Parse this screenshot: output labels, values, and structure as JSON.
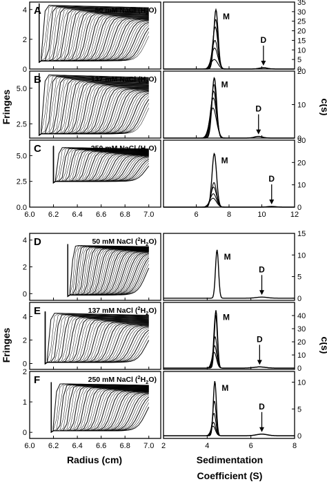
{
  "chart_data": [
    {
      "figure": "top",
      "left": {
        "type": "line",
        "ylabel": "Fringes",
        "xlabel": "",
        "xlim": [
          6.0,
          7.1
        ],
        "xticks": [
          "6.0",
          "6.2",
          "6.4",
          "6.6",
          "6.8",
          "7.0"
        ],
        "panels": [
          {
            "letter": "A",
            "condition": "50 mM NaCl (H",
            "sub": "2",
            "tail": "O)",
            "ylim": [
              0,
              4.5
            ],
            "yticks": [
              "0",
              "2",
              "4"
            ],
            "meniscus": 6.08,
            "y_low": 0.55,
            "y_high": 4.3,
            "y_plateau_end": 3.1,
            "n_scans": 45
          },
          {
            "letter": "B",
            "condition": "137 mM NaCl (H",
            "sub": "2",
            "tail": "O)",
            "ylim": [
              1.5,
              6.2
            ],
            "yticks": [
              "2.5",
              "5.0"
            ],
            "meniscus": 6.08,
            "y_low": 1.8,
            "y_high": 5.95,
            "y_plateau_end": 4.6,
            "n_scans": 45
          },
          {
            "letter": "C",
            "condition": "250 mM NaCl (H",
            "sub": "2",
            "tail": "O)",
            "ylim": [
              0,
              6.5
            ],
            "yticks": [
              "0.0",
              "2.5",
              "5.0"
            ],
            "meniscus": 6.2,
            "y_low": 2.5,
            "y_high": 5.8,
            "y_plateau_end": 4.8,
            "n_scans": 40
          }
        ]
      },
      "right": {
        "type": "line",
        "ylabel": "c(s)",
        "xlabel": "",
        "xlim": [
          4,
          12
        ],
        "xticks": [
          "6",
          "8",
          "10",
          "12"
        ],
        "panels": [
          {
            "ylim": [
              0,
              35
            ],
            "yticks": [
              "0",
              "5",
              "10",
              "15",
              "20",
              "25",
              "30",
              "35"
            ],
            "monomer_s": 7.2,
            "dimer_s": 10.1,
            "peak_heights": [
              31,
              26,
              22,
              15,
              11,
              5
            ],
            "peak_width": 0.13,
            "dimer_height": 0.7,
            "M": "M",
            "D": "D"
          },
          {
            "ylim": [
              0,
              20
            ],
            "yticks": [
              "0",
              "10",
              "20"
            ],
            "monomer_s": 7.1,
            "dimer_s": 9.8,
            "peak_heights": [
              18,
              16,
              14,
              12,
              9
            ],
            "peak_width": 0.14,
            "dimer_height": 0.5,
            "M": "M",
            "D": "D"
          },
          {
            "ylim": [
              0,
              30
            ],
            "yticks": [
              "0",
              "10",
              "20",
              "30"
            ],
            "monomer_s": 7.1,
            "dimer_s": 10.6,
            "peak_heights": [
              24,
              11,
              9,
              6,
              4
            ],
            "peak_width": 0.14,
            "dimer_height": 0.3,
            "M": "M",
            "D": "D"
          }
        ]
      }
    },
    {
      "figure": "bottom",
      "left": {
        "type": "line",
        "ylabel": "Fringes",
        "xlabel": "Radius (cm)",
        "xlim": [
          6.0,
          7.1
        ],
        "xticks": [
          "6.0",
          "6.2",
          "6.4",
          "6.6",
          "6.8",
          "7.0"
        ],
        "panels": [
          {
            "letter": "D",
            "condition": "50 mM NaCl (",
            "sup": "2",
            "tail": "H",
            "sub": "2",
            "tail2": "O)",
            "ylim": [
              -0.5,
              4.5
            ],
            "yticks": [
              "0",
              "2",
              "4"
            ],
            "meniscus": 6.32,
            "y_low": -0.1,
            "y_high": 3.6,
            "y_plateau_end": 3.0,
            "n_scans": 40
          },
          {
            "letter": "E",
            "condition": "137 mM NaCl (",
            "sup": "2",
            "tail": "H",
            "sub": "2",
            "tail2": "O)",
            "ylim": [
              -0.5,
              5.2
            ],
            "yticks": [
              "0",
              "2",
              "4"
            ],
            "meniscus": 6.13,
            "y_low": 0.1,
            "y_high": 4.3,
            "y_plateau_end": 3.0,
            "n_scans": 40
          },
          {
            "letter": "F",
            "condition": "250 mM NaCl (",
            "sup": "2",
            "tail": "H",
            "sub": "2",
            "tail2": "O)",
            "ylim": [
              -0.2,
              2.0
            ],
            "yticks": [
              "0",
              "1",
              "2"
            ],
            "meniscus": 6.18,
            "y_low": 0.05,
            "y_high": 1.6,
            "y_plateau_end": 1.25,
            "n_scans": 40
          }
        ]
      },
      "right": {
        "type": "line",
        "ylabel": "c(s)",
        "xlabel": "Sedimentation Coefficient (S)",
        "xlim": [
          2,
          8
        ],
        "xticks": [
          "2",
          "4",
          "6",
          "8"
        ],
        "panels": [
          {
            "ylim": [
              -0.5,
              15
            ],
            "yticks": [
              "0",
              "5",
              "10",
              "15"
            ],
            "monomer_s": 4.45,
            "dimer_s": 6.5,
            "peak_heights": [
              11.2
            ],
            "peak_width": 0.07,
            "dimer_height": 0.25,
            "M": "M",
            "D": "D"
          },
          {
            "ylim": [
              -1,
              50
            ],
            "yticks": [
              "0",
              "10",
              "20",
              "30",
              "40"
            ],
            "monomer_s": 4.4,
            "dimer_s": 6.4,
            "peak_heights": [
              44,
              41,
              24,
              17,
              12
            ],
            "peak_width": 0.07,
            "dimer_height": 0.9,
            "M": "M",
            "D": "D"
          },
          {
            "ylim": [
              -0.5,
              12
            ],
            "yticks": [
              "0",
              "5",
              "10"
            ],
            "monomer_s": 4.35,
            "dimer_s": 6.5,
            "peak_heights": [
              10.2,
              6.5,
              4.2,
              2.5,
              1.8
            ],
            "peak_width": 0.07,
            "dimer_height": 0.3,
            "M": "M",
            "D": "D"
          }
        ]
      }
    }
  ],
  "labels": {
    "fringes_top": "Fringes",
    "fringes_bottom": "Fringes",
    "cs_top": "c(s)",
    "cs_bottom": "c(s)",
    "radius": "Radius (cm)",
    "sed_line1": "Sedimentation",
    "sed_line2": "Coefficient (S)"
  }
}
